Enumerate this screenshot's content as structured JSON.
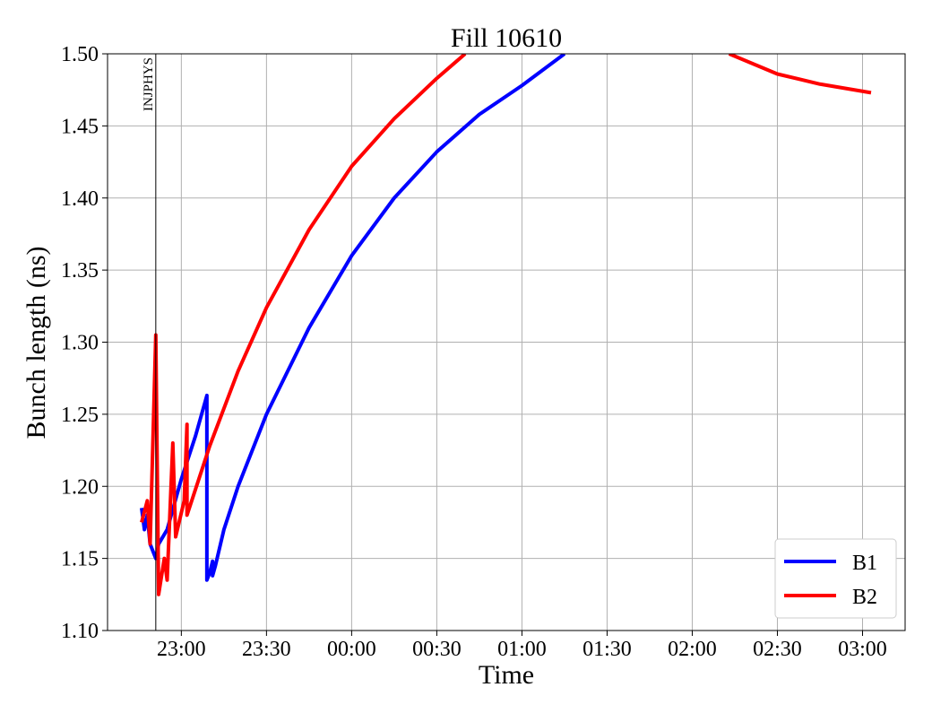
{
  "chart_data": {
    "type": "line",
    "title": "Fill 10610",
    "xlabel": "Time",
    "ylabel": "Bunch length (ns)",
    "xlim": [
      "22:34",
      "03:15"
    ],
    "xticks": [
      "23:00",
      "23:30",
      "00:00",
      "00:30",
      "01:00",
      "01:30",
      "02:00",
      "02:30",
      "03:00"
    ],
    "ylim": [
      1.1,
      1.5
    ],
    "yticks": [
      {
        "value": 1.1,
        "label": "1.10"
      },
      1.15,
      {
        "value": 1.2,
        "label": "1.20"
      },
      1.25,
      {
        "value": 1.3,
        "label": "1.30"
      },
      1.35,
      {
        "value": 1.4,
        "label": "1.40"
      },
      1.45,
      {
        "value": 1.5,
        "label": "1.50"
      }
    ],
    "grid": true,
    "legend": "lower right",
    "annotations": [
      {
        "text": "INJPHYS",
        "x": "22:51"
      }
    ],
    "series": [
      {
        "name": "B1",
        "color": "#0000ff",
        "x": [
          "22:46",
          "22:47",
          "22:48",
          "22:49",
          "22:51",
          "22:52",
          "22:55",
          "23:00",
          "23:05",
          "23:09",
          "23:09",
          "23:10",
          "23:11",
          "23:11",
          "23:12",
          "23:15",
          "23:20",
          "23:30",
          "23:45",
          "00:00",
          "00:15",
          "00:30",
          "00:45",
          "01:00",
          "01:15"
        ],
        "values": [
          1.185,
          1.17,
          1.18,
          1.16,
          1.15,
          1.16,
          1.17,
          1.205,
          1.235,
          1.263,
          1.135,
          1.14,
          1.148,
          1.138,
          1.145,
          1.17,
          1.2,
          1.25,
          1.31,
          1.36,
          1.4,
          1.432,
          1.458,
          1.478,
          1.5
        ]
      },
      {
        "name": "B2",
        "color": "#ff0000",
        "x": [
          "22:46",
          "22:48",
          "22:49",
          "22:51",
          "22:52",
          "22:54",
          "22:55",
          "22:57",
          "22:58",
          "23:01",
          "23:02",
          "23:02",
          "23:10",
          "23:20",
          "23:30",
          "23:45",
          "00:00",
          "00:15",
          "00:30",
          "00:40",
          "02:13",
          "02:30",
          "02:45",
          "03:03"
        ],
        "values": [
          1.175,
          1.19,
          1.16,
          1.305,
          1.125,
          1.15,
          1.135,
          1.23,
          1.165,
          1.19,
          1.243,
          1.18,
          1.228,
          1.28,
          1.324,
          1.378,
          1.422,
          1.455,
          1.483,
          1.5,
          1.5,
          1.486,
          1.479,
          1.473
        ]
      }
    ]
  }
}
